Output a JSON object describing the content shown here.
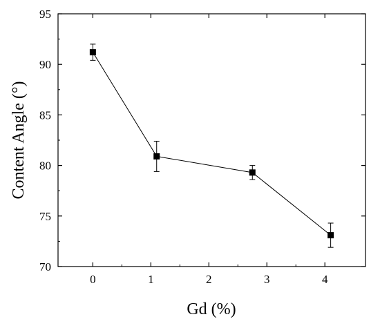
{
  "chart_data": {
    "type": "line",
    "xlabel": "Gd (%)",
    "ylabel": "Content Angle (°)",
    "xlim": [
      -0.6,
      4.7
    ],
    "ylim": [
      70,
      95
    ],
    "xticks": [
      0,
      1,
      2,
      3,
      4
    ],
    "yticks": [
      70,
      75,
      80,
      85,
      90,
      95
    ],
    "grid": false,
    "series": [
      {
        "x": [
          0,
          1.1,
          2.75,
          4.1
        ],
        "y": [
          91.2,
          80.9,
          79.3,
          73.1
        ],
        "error": [
          0.8,
          1.5,
          0.7,
          1.2
        ]
      }
    ],
    "marker": "square",
    "line_color": "#000000"
  }
}
